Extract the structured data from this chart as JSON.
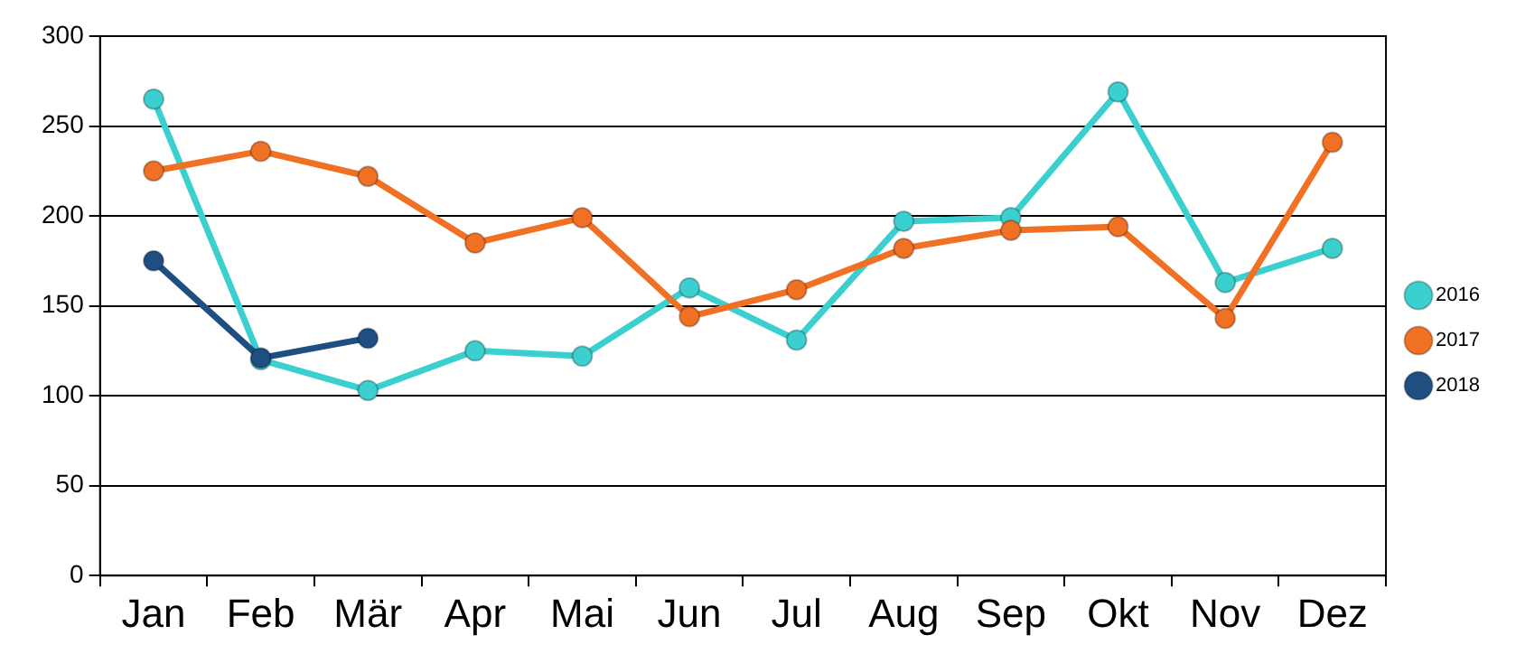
{
  "chart_data": {
    "type": "line",
    "categories": [
      "Jan",
      "Feb",
      "Mär",
      "Apr",
      "Mai",
      "Jun",
      "Jul",
      "Aug",
      "Sep",
      "Okt",
      "Nov",
      "Dez"
    ],
    "series": [
      {
        "name": "2016",
        "color": "#3ccfcf",
        "values": [
          265,
          120,
          103,
          125,
          122,
          160,
          131,
          197,
          199,
          269,
          163,
          182
        ]
      },
      {
        "name": "2017",
        "color": "#f07024",
        "values": [
          225,
          236,
          222,
          185,
          199,
          144,
          159,
          182,
          192,
          194,
          143,
          241
        ]
      },
      {
        "name": "2018",
        "color": "#1f4e80",
        "values": [
          175,
          121,
          132,
          null,
          null,
          null,
          null,
          null,
          null,
          null,
          null,
          null
        ]
      }
    ],
    "ylim": [
      0,
      300
    ],
    "yticks": [
      0,
      50,
      100,
      150,
      200,
      250,
      300
    ],
    "grid": "y",
    "legend": "right",
    "marker": "circle",
    "line_style": "solid"
  }
}
